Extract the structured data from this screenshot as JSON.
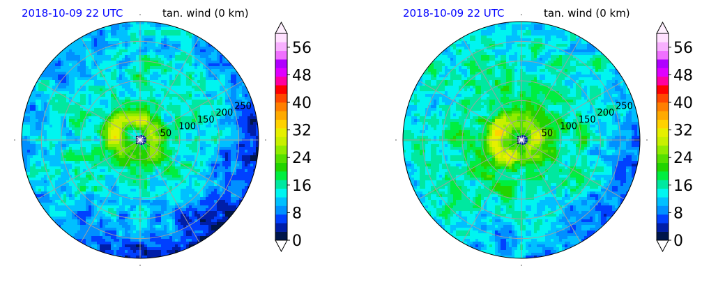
{
  "figure": {
    "panels": [
      {
        "time_label": "2018-10-09 22 UTC",
        "var_label": "tan. wind (0 km)"
      },
      {
        "time_label": "2018-10-09 22 UTC",
        "var_label": "tan. wind (0 km)"
      }
    ],
    "colors": {
      "time_label": "#0000ff",
      "var_label": "#000000",
      "grid": "#a0a0a0"
    }
  },
  "chart_data": [
    {
      "type": "heatmap",
      "projection": "polar",
      "title": "tan. wind (0 km)",
      "subtitle": "2018-10-09 22 UTC",
      "radial_ticks": [
        "50",
        "100",
        "150",
        "200",
        "250"
      ],
      "r_max": 300,
      "colorbar": {
        "ticks": [
          "0",
          "8",
          "16",
          "24",
          "32",
          "40",
          "48",
          "56"
        ],
        "range": [
          0,
          60
        ],
        "extend": "both"
      },
      "wind_field": {
        "center_min": 0,
        "eyewall_max": 33,
        "eyewall_side": "northwest",
        "background_inner": 18,
        "background_outer": 11,
        "weak_region": "southeast",
        "weak_min": 4
      }
    },
    {
      "type": "heatmap",
      "projection": "polar",
      "title": "tan. wind (0 km)",
      "subtitle": "2018-10-09 22 UTC",
      "radial_ticks": [
        "50",
        "100",
        "150",
        "200",
        "250"
      ],
      "r_max": 300,
      "colorbar": {
        "ticks": [
          "0",
          "8",
          "16",
          "24",
          "32",
          "40",
          "48",
          "56"
        ],
        "range": [
          0,
          60
        ],
        "extend": "both"
      },
      "wind_field": {
        "center_min": 0,
        "eyewall_max": 36,
        "eyewall_side": "west",
        "background_inner": 20,
        "background_outer": 13,
        "weak_region": "southeast",
        "weak_min": 8
      }
    }
  ],
  "colormap": [
    "#00164a",
    "#001ea8",
    "#0040ff",
    "#0090ff",
    "#00c0ff",
    "#00f5f0",
    "#00e8a0",
    "#00ee40",
    "#22d400",
    "#55e000",
    "#90ec00",
    "#c8f000",
    "#e6f000",
    "#ffd200",
    "#ffaa00",
    "#ff7f00",
    "#ff4800",
    "#ff0000",
    "#ff00a0",
    "#e000ff",
    "#b000ff",
    "#f070ff",
    "#f8b0ff",
    "#ffe0ff"
  ]
}
